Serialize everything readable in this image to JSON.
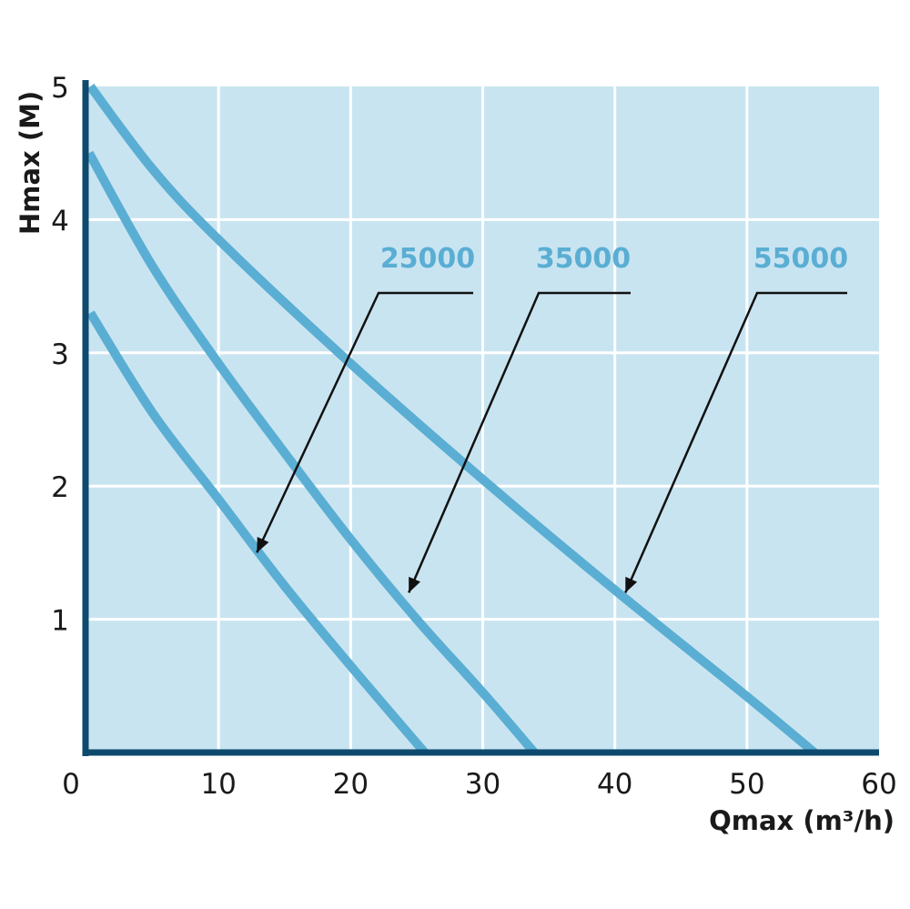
{
  "chart_data": {
    "type": "line",
    "title": "",
    "xlabel": "Qmax (m³/h)",
    "ylabel": "Hmax (M)",
    "xlim": [
      0,
      60
    ],
    "ylim": [
      0,
      5
    ],
    "x_ticks": [
      0,
      10,
      20,
      30,
      40,
      50,
      60
    ],
    "x_tick_labels": [
      "0",
      "10",
      "20",
      "30",
      "40",
      "50",
      "60"
    ],
    "y_ticks": [
      1,
      2,
      3,
      4,
      5
    ],
    "y_tick_labels": [
      "1",
      "2",
      "3",
      "4",
      "5"
    ],
    "grid": true,
    "legend": "none (inline annotated labels with arrows)",
    "series": [
      {
        "name": "25000",
        "points": [
          [
            0.3,
            3.3
          ],
          [
            5,
            2.55
          ],
          [
            10,
            1.9
          ],
          [
            15,
            1.25
          ],
          [
            20,
            0.65
          ],
          [
            25.6,
            0.0
          ]
        ],
        "arrow_target": [
          12.9,
          1.5
        ]
      },
      {
        "name": "35000",
        "points": [
          [
            0.2,
            4.5
          ],
          [
            5,
            3.65
          ],
          [
            10,
            2.92
          ],
          [
            15,
            2.25
          ],
          [
            20,
            1.6
          ],
          [
            25,
            1.0
          ],
          [
            30,
            0.45
          ],
          [
            33.9,
            0.0
          ]
        ],
        "arrow_target": [
          24.4,
          1.2
        ]
      },
      {
        "name": "55000",
        "points": [
          [
            0.3,
            5.0
          ],
          [
            5,
            4.38
          ],
          [
            10,
            3.85
          ],
          [
            20,
            2.92
          ],
          [
            30,
            2.05
          ],
          [
            40,
            1.22
          ],
          [
            50,
            0.42
          ],
          [
            55.1,
            0.0
          ]
        ],
        "arrow_target": [
          40.8,
          1.2
        ]
      }
    ],
    "colors": {
      "background": "#c9e4f1",
      "grid": "#ffffff",
      "axis": "#0d4a6e",
      "curve": "#5aaed3",
      "label": "#5aaed3",
      "arrow": "#111111"
    }
  }
}
